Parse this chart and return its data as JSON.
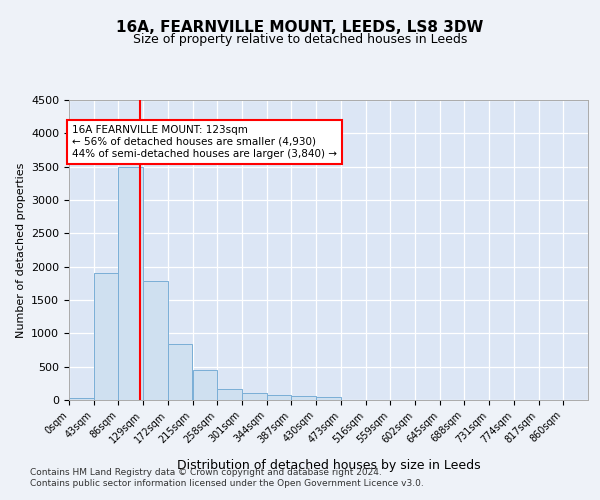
{
  "title": "16A, FEARNVILLE MOUNT, LEEDS, LS8 3DW",
  "subtitle": "Size of property relative to detached houses in Leeds",
  "xlabel": "Distribution of detached houses by size in Leeds",
  "ylabel": "Number of detached properties",
  "bins": [
    "0sqm",
    "43sqm",
    "86sqm",
    "129sqm",
    "172sqm",
    "215sqm",
    "258sqm",
    "301sqm",
    "344sqm",
    "387sqm",
    "430sqm",
    "473sqm",
    "516sqm",
    "559sqm",
    "602sqm",
    "645sqm",
    "688sqm",
    "731sqm",
    "774sqm",
    "817sqm",
    "860sqm"
  ],
  "bar_heights": [
    30,
    1900,
    3500,
    1780,
    840,
    450,
    160,
    100,
    75,
    55,
    50,
    0,
    0,
    0,
    0,
    0,
    0,
    0,
    0,
    0,
    0
  ],
  "bar_color": "#cfe0f0",
  "bar_edge_color": "#7aaed6",
  "property_line_x": 123,
  "property_line_color": "red",
  "annotation_text": "16A FEARNVILLE MOUNT: 123sqm\n← 56% of detached houses are smaller (4,930)\n44% of semi-detached houses are larger (3,840) →",
  "annotation_box_color": "white",
  "annotation_box_edge_color": "red",
  "ylim": [
    0,
    4500
  ],
  "yticks": [
    0,
    500,
    1000,
    1500,
    2000,
    2500,
    3000,
    3500,
    4000,
    4500
  ],
  "footer_line1": "Contains HM Land Registry data © Crown copyright and database right 2024.",
  "footer_line2": "Contains public sector information licensed under the Open Government Licence v3.0.",
  "bg_color": "#eef2f8",
  "plot_bg_color": "#dce6f5",
  "grid_color": "white",
  "bin_width": 43
}
